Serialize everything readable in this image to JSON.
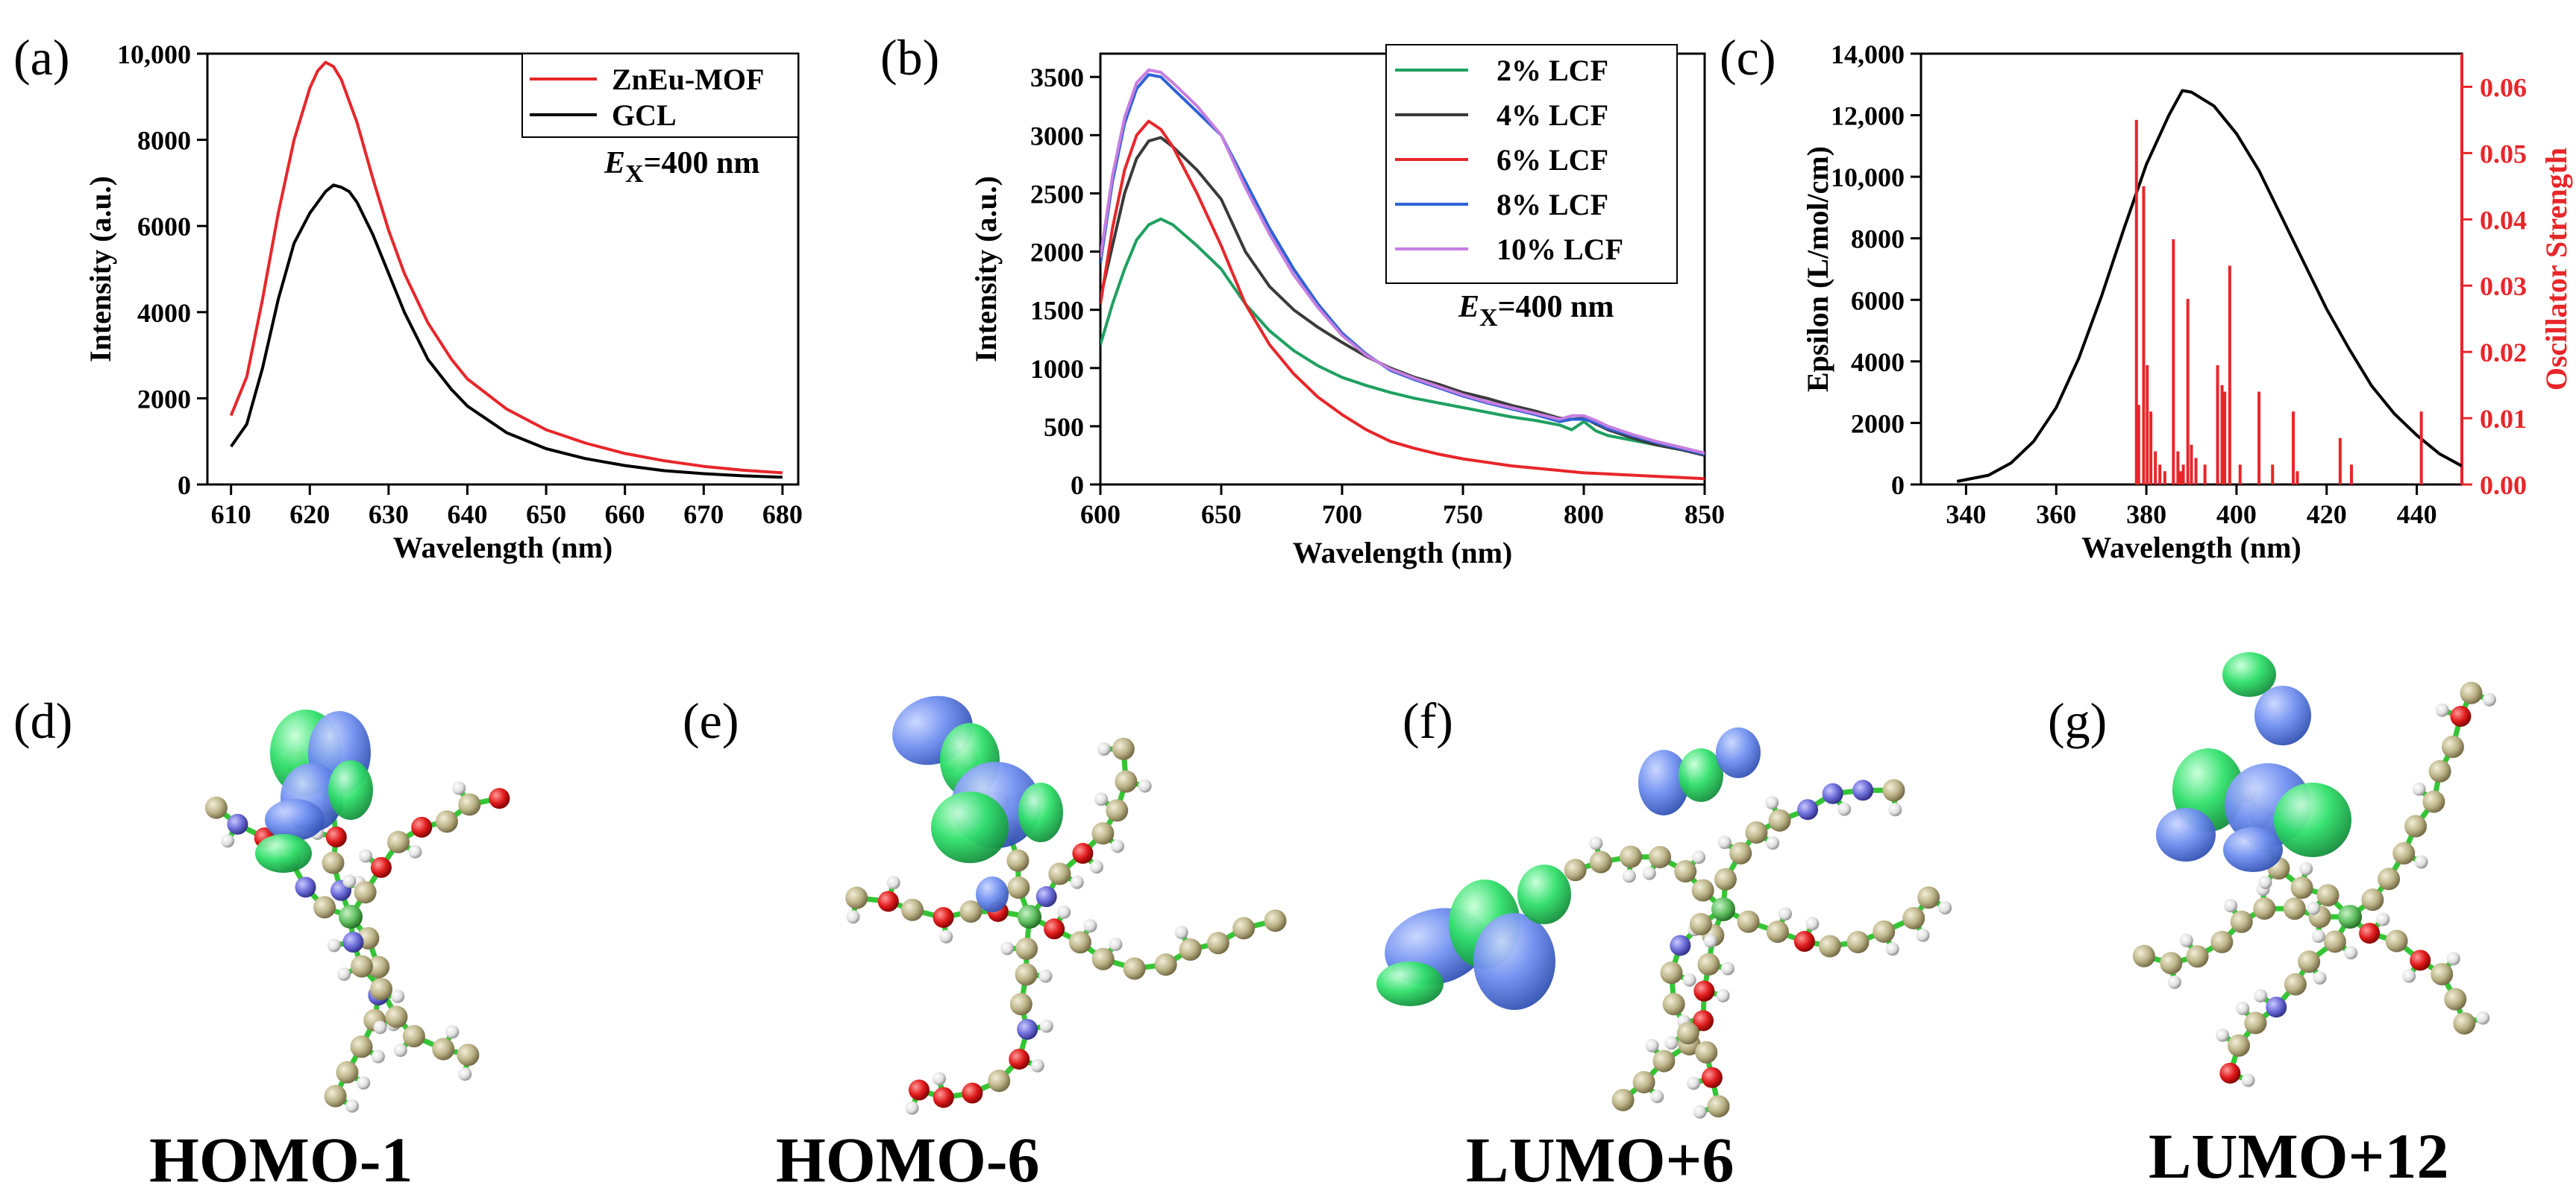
{
  "panels": {
    "a": "(a)",
    "b": "(b)",
    "c": "(c)",
    "d": "(d)",
    "e": "(e)",
    "f": "(f)",
    "g": "(g)"
  },
  "orbital_labels": {
    "d": "HOMO-1",
    "e": "HOMO-6",
    "f": "LUMO+6",
    "g": "LUMO+12"
  },
  "colors": {
    "red": "#e8262a",
    "black": "#000000",
    "green": "#1fa060",
    "dark": "#3a3a3a",
    "blue": "#2f63d6",
    "purple": "#c77ee0",
    "lobe_blue": "#6f8ff0",
    "lobe_green": "#2fe06a",
    "atom_C": "#bdb489",
    "atom_O": "#e01b1b",
    "atom_N": "#6b6bd8",
    "atom_H": "#e8e8e8",
    "bond": "#34c534"
  },
  "chart_data": [
    {
      "id": "a",
      "type": "line",
      "xlabel": "Wavelength (nm)",
      "ylabel": "Intensity (a.u.)",
      "xlim": [
        607,
        682
      ],
      "ylim": [
        0,
        10000
      ],
      "xticks": [
        610,
        620,
        630,
        640,
        650,
        660,
        670,
        680
      ],
      "yticks": [
        0,
        2000,
        4000,
        6000,
        8000,
        10000
      ],
      "ytick_labels": [
        "0",
        "2000",
        "4000",
        "6000",
        "8000",
        "10,000"
      ],
      "legend": "top-right",
      "annotation": {
        "italic": "E",
        "sub": "X",
        "rest": "=400 nm"
      },
      "series": [
        {
          "name": "ZnEu-MOF",
          "color": "#e8262a",
          "x": [
            610,
            612,
            614,
            616,
            618,
            620,
            621,
            622,
            623,
            624,
            626,
            628,
            630,
            632,
            635,
            638,
            640,
            645,
            650,
            655,
            660,
            665,
            670,
            675,
            680
          ],
          "y": [
            1600,
            2500,
            4300,
            6300,
            8000,
            9200,
            9600,
            9800,
            9700,
            9400,
            8400,
            7100,
            5900,
            4900,
            3750,
            2900,
            2450,
            1750,
            1270,
            960,
            720,
            550,
            420,
            330,
            270
          ]
        },
        {
          "name": "GCL",
          "color": "#000000",
          "x": [
            610,
            612,
            614,
            616,
            618,
            620,
            622,
            623,
            624,
            625,
            626,
            628,
            630,
            632,
            635,
            638,
            640,
            645,
            650,
            655,
            660,
            665,
            670,
            675,
            680
          ],
          "y": [
            880,
            1400,
            2700,
            4300,
            5600,
            6300,
            6800,
            6950,
            6900,
            6800,
            6550,
            5800,
            4900,
            4000,
            2900,
            2200,
            1820,
            1200,
            830,
            600,
            440,
            320,
            250,
            200,
            170
          ]
        }
      ]
    },
    {
      "id": "b",
      "type": "line",
      "xlabel": "Wavelength (nm)",
      "ylabel": "Intensity (a.u.)",
      "xlim": [
        600,
        850
      ],
      "ylim": [
        0,
        3700
      ],
      "xticks": [
        600,
        650,
        700,
        750,
        800,
        850
      ],
      "yticks": [
        0,
        500,
        1000,
        1500,
        2000,
        2500,
        3000,
        3500
      ],
      "legend": "top-right",
      "annotation": {
        "italic": "E",
        "sub": "X",
        "rest": "=400 nm"
      },
      "series": [
        {
          "name": "2% LCF",
          "color": "#1fa060",
          "x": [
            600,
            605,
            610,
            615,
            620,
            625,
            630,
            640,
            650,
            660,
            670,
            680,
            690,
            700,
            710,
            720,
            730,
            740,
            750,
            760,
            770,
            780,
            790,
            795,
            800,
            805,
            810,
            820,
            830,
            840,
            850
          ],
          "y": [
            1200,
            1550,
            1850,
            2100,
            2230,
            2280,
            2230,
            2050,
            1850,
            1550,
            1320,
            1150,
            1020,
            920,
            850,
            790,
            740,
            700,
            660,
            620,
            580,
            550,
            510,
            470,
            540,
            460,
            420,
            380,
            340,
            300,
            260
          ]
        },
        {
          "name": "4% LCF",
          "color": "#3a3a3a",
          "x": [
            600,
            605,
            610,
            615,
            620,
            625,
            630,
            640,
            650,
            660,
            670,
            680,
            690,
            700,
            710,
            720,
            730,
            740,
            750,
            760,
            770,
            780,
            790,
            795,
            800,
            805,
            810,
            820,
            830,
            840,
            850
          ],
          "y": [
            1600,
            2050,
            2500,
            2800,
            2950,
            2980,
            2900,
            2700,
            2450,
            2000,
            1700,
            1500,
            1350,
            1220,
            1100,
            1000,
            920,
            860,
            790,
            740,
            680,
            630,
            570,
            560,
            570,
            520,
            470,
            400,
            340,
            300,
            250
          ]
        },
        {
          "name": "6% LCF",
          "color": "#e8262a",
          "x": [
            600,
            605,
            610,
            615,
            620,
            625,
            630,
            640,
            650,
            660,
            670,
            680,
            690,
            700,
            710,
            720,
            730,
            740,
            750,
            760,
            770,
            780,
            790,
            800,
            810,
            820,
            830,
            840,
            850
          ],
          "y": [
            1550,
            2200,
            2700,
            3000,
            3120,
            3050,
            2900,
            2500,
            2050,
            1550,
            1200,
            950,
            750,
            600,
            470,
            370,
            310,
            260,
            220,
            190,
            160,
            140,
            120,
            100,
            90,
            80,
            70,
            60,
            50
          ]
        },
        {
          "name": "8% LCF",
          "color": "#2f63d6",
          "x": [
            600,
            605,
            610,
            615,
            620,
            625,
            630,
            640,
            650,
            660,
            670,
            680,
            690,
            700,
            710,
            720,
            730,
            740,
            750,
            760,
            770,
            780,
            790,
            795,
            800,
            805,
            810,
            820,
            830,
            840,
            850
          ],
          "y": [
            1900,
            2600,
            3100,
            3400,
            3520,
            3500,
            3400,
            3200,
            3000,
            2600,
            2200,
            1850,
            1550,
            1300,
            1120,
            980,
            900,
            830,
            760,
            700,
            650,
            600,
            540,
            560,
            560,
            530,
            480,
            420,
            360,
            310,
            260
          ]
        },
        {
          "name": "10% LCF",
          "color": "#c77ee0",
          "x": [
            600,
            605,
            610,
            615,
            620,
            625,
            630,
            640,
            650,
            660,
            670,
            680,
            690,
            700,
            710,
            720,
            730,
            740,
            750,
            760,
            770,
            780,
            790,
            795,
            800,
            805,
            810,
            820,
            830,
            840,
            850
          ],
          "y": [
            1950,
            2650,
            3150,
            3450,
            3560,
            3540,
            3450,
            3250,
            3000,
            2550,
            2150,
            1800,
            1520,
            1280,
            1110,
            990,
            910,
            840,
            770,
            710,
            660,
            610,
            560,
            590,
            590,
            550,
            500,
            430,
            370,
            320,
            270
          ]
        }
      ]
    },
    {
      "id": "c",
      "type": "line",
      "xlabel": "Wavelength (nm)",
      "ylabel": "Epsilon (L/mol/cm)",
      "y2label": "Oscillator Strength",
      "xlim": [
        330,
        450
      ],
      "ylim": [
        0,
        14000
      ],
      "y2lim": [
        0,
        0.065
      ],
      "xticks": [
        340,
        360,
        380,
        400,
        420,
        440
      ],
      "yticks": [
        0,
        2000,
        4000,
        6000,
        8000,
        10000,
        12000,
        14000
      ],
      "ytick_labels": [
        "0",
        "2000",
        "4000",
        "6000",
        "8000",
        "10,000",
        "12,000",
        "14,000"
      ],
      "y2ticks": [
        0,
        0.01,
        0.02,
        0.03,
        0.04,
        0.05,
        0.06
      ],
      "y2tick_labels": [
        "0.00",
        "0.01",
        "0.02",
        "0.03",
        "0.04",
        "0.05",
        "0.06"
      ],
      "series": [
        {
          "name": "",
          "color": "#000000",
          "axis": "left",
          "x": [
            338,
            345,
            350,
            355,
            360,
            365,
            370,
            375,
            380,
            385,
            388,
            390,
            395,
            400,
            405,
            410,
            415,
            420,
            425,
            430,
            435,
            440,
            445,
            450
          ],
          "y": [
            100,
            300,
            700,
            1400,
            2500,
            4100,
            6100,
            8300,
            10400,
            12000,
            12800,
            12750,
            12300,
            11400,
            10200,
            8700,
            7200,
            5700,
            4400,
            3200,
            2300,
            1600,
            1000,
            600
          ]
        },
        {
          "name": "",
          "color": "#e8262a",
          "axis": "right",
          "kind": "stick",
          "x": [
            377.8,
            378.3,
            379.4,
            380.2,
            381.0,
            382.0,
            383.0,
            384.1,
            386.0,
            387.0,
            387.6,
            388.2,
            389.2,
            390.0,
            391.0,
            393.0,
            395.8,
            396.8,
            397.4,
            398.5,
            400.8,
            405.0,
            408.0,
            412.6,
            413.5,
            423.0,
            425.5,
            441.0
          ],
          "y": [
            0.055,
            0.012,
            0.045,
            0.018,
            0.011,
            0.005,
            0.003,
            0.002,
            0.037,
            0.005,
            0.002,
            0.003,
            0.028,
            0.006,
            0.004,
            0.003,
            0.018,
            0.015,
            0.014,
            0.033,
            0.003,
            0.014,
            0.003,
            0.011,
            0.002,
            0.007,
            0.003,
            0.011
          ]
        }
      ]
    }
  ]
}
